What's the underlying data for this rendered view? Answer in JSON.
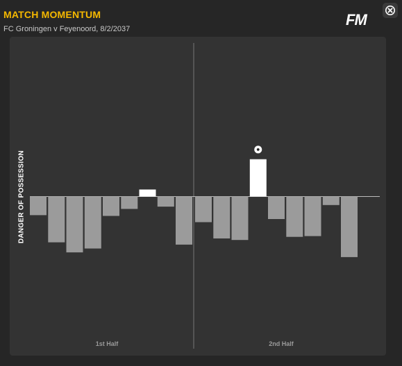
{
  "header": {
    "title": "MATCH MOMENTUM",
    "subtitle": "FC Groningen v Feyenoord, 8/2/2037",
    "logo_text": "FM"
  },
  "close_button": {
    "icon": "close-icon"
  },
  "colors": {
    "title": "#f5b800",
    "home_bar": "#ffffff",
    "away_bar": "#9b9b9b",
    "panel": "#333333"
  },
  "chart_data": {
    "type": "bar",
    "ylabel": "DANGER OF POSSESSION",
    "halves": [
      "1st Half",
      "2nd Half"
    ],
    "ylim": [
      -100,
      100
    ],
    "series": [
      {
        "half": "1st Half",
        "values": [
          -24,
          -59,
          -72,
          -67,
          -25,
          -16,
          9,
          -13,
          -62
        ]
      },
      {
        "half": "2nd Half",
        "values": [
          -33,
          -54,
          -56,
          48,
          -29,
          -52,
          -51,
          -11,
          -78
        ]
      }
    ],
    "goal_markers": [
      {
        "half": "2nd Half",
        "index": 3,
        "icon": "ball-icon"
      }
    ]
  }
}
